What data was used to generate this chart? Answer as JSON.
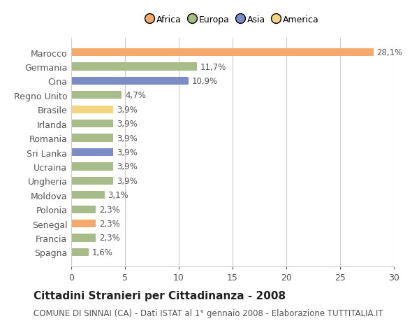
{
  "countries": [
    "Marocco",
    "Germania",
    "Cina",
    "Regno Unito",
    "Brasile",
    "Irlanda",
    "Romania",
    "Sri Lanka",
    "Ucraina",
    "Ungheria",
    "Moldova",
    "Polonia",
    "Senegal",
    "Francia",
    "Spagna"
  ],
  "values": [
    28.1,
    11.7,
    10.9,
    4.7,
    3.9,
    3.9,
    3.9,
    3.9,
    3.9,
    3.9,
    3.1,
    2.3,
    2.3,
    2.3,
    1.6
  ],
  "colors": [
    "#F4A96D",
    "#A8BC8A",
    "#7B8DC4",
    "#A8BC8A",
    "#F4D580",
    "#A8BC8A",
    "#A8BC8A",
    "#7B8DC4",
    "#A8BC8A",
    "#A8BC8A",
    "#A8BC8A",
    "#A8BC8A",
    "#F4A96D",
    "#A8BC8A",
    "#A8BC8A"
  ],
  "legend_labels": [
    "Africa",
    "Europa",
    "Asia",
    "America"
  ],
  "legend_colors": [
    "#F4A96D",
    "#A8BC8A",
    "#7B8DC4",
    "#F4D580"
  ],
  "xlim": [
    0,
    30
  ],
  "xticks": [
    0,
    5,
    10,
    15,
    20,
    25,
    30
  ],
  "title": "Cittadini Stranieri per Cittadinanza - 2008",
  "subtitle": "COMUNE DI SINNAI (CA) - Dati ISTAT al 1° gennaio 2008 - Elaborazione TUTTITALIA.IT",
  "title_fontsize": 11,
  "subtitle_fontsize": 8.5,
  "bar_label_fontsize": 8.5,
  "ytick_fontsize": 9,
  "xtick_fontsize": 9,
  "background_color": "#ffffff",
  "grid_color": "#cccccc",
  "bar_height": 0.55
}
